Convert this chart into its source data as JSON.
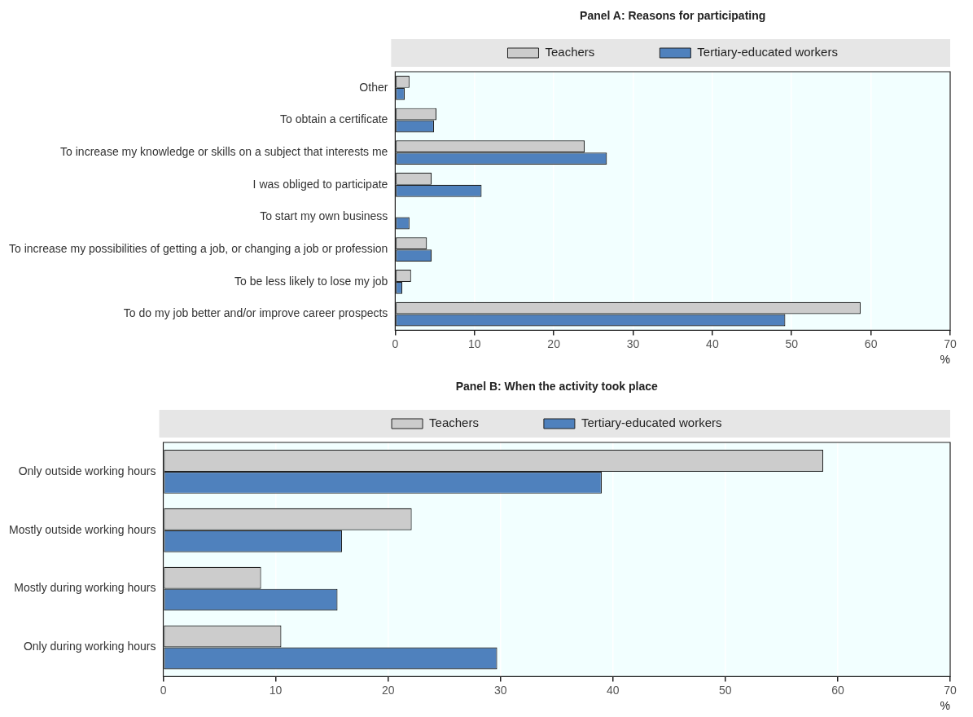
{
  "chart_data": [
    {
      "type": "bar",
      "orientation": "horizontal",
      "title": "Panel A: Reasons for participating",
      "xlabel": "%",
      "categories": [
        "Other",
        "To obtain a certificate",
        "To increase my knowledge or skills on a subject that interests me",
        "I was obliged to participate",
        "To start my own business",
        "To increase my possibilities of getting a job, or changing a job or profession",
        "To be less likely to lose my job",
        "To do my job better and/or improve career prospects"
      ],
      "series": [
        {
          "name": "Teachers",
          "color": "#cccccc",
          "values": [
            1.8,
            5.2,
            23.9,
            4.6,
            null,
            4.0,
            2.0,
            58.7
          ]
        },
        {
          "name": "Tertiary-educated workers",
          "color": "#4f81bd",
          "values": [
            1.2,
            4.9,
            26.7,
            10.9,
            1.8,
            4.6,
            0.9,
            49.2
          ]
        }
      ],
      "xlim": [
        0,
        70
      ],
      "xticks": [
        0,
        10,
        20,
        30,
        40,
        50,
        60,
        70
      ],
      "grid": "x",
      "legend": "top"
    },
    {
      "type": "bar",
      "orientation": "horizontal",
      "title": "Panel B: When the activity took place",
      "xlabel": "%",
      "categories": [
        "Only outside working hours",
        "Mostly outside working hours",
        "Mostly during working hours",
        "Only during working hours"
      ],
      "series": [
        {
          "name": "Teachers",
          "color": "#cccccc",
          "values": [
            58.7,
            22.1,
            8.7,
            10.5
          ]
        },
        {
          "name": "Tertiary-educated workers",
          "color": "#4f81bd",
          "values": [
            39.0,
            15.9,
            15.5,
            29.7
          ]
        }
      ],
      "xlim": [
        0,
        70
      ],
      "xticks": [
        0,
        10,
        20,
        30,
        40,
        50,
        60,
        70
      ],
      "grid": "x",
      "legend": "top"
    }
  ]
}
